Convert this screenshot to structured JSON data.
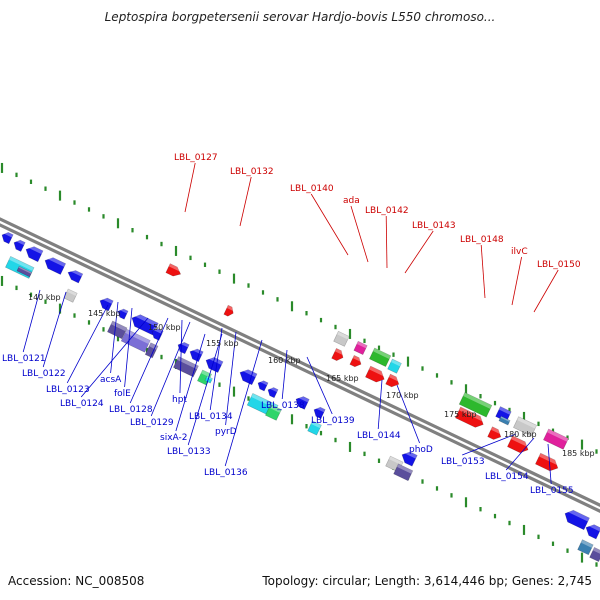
{
  "title": "Leptospira borgpetersenii serovar Hardjo-bovis L550 chromoso...",
  "footer": {
    "accession": "Accession: NC_008508",
    "summary": "Topology: circular; Length: 3,614,446 bp; Genes: 2,745"
  },
  "colors": {
    "backbone": "#808080",
    "forward_labels": "#cc0000",
    "reverse_labels": "#0000cc",
    "ticks": "#2a8a2a",
    "kbp_labels": "#222222"
  },
  "scale_ticks": [
    "140 kbp",
    "145 kbp",
    "150 kbp",
    "155 kbp",
    "160 kbp",
    "165 kbp",
    "170 kbp",
    "175 kbp",
    "180 kbp",
    "185 kbp"
  ],
  "forward_gene_labels": [
    "LBL_0127",
    "LBL_0132",
    "LBL_0140",
    "ada",
    "LBL_0142",
    "LBL_0143",
    "LBL_0148",
    "ilvC",
    "LBL_0150"
  ],
  "reverse_gene_labels": [
    "LBL_0121",
    "LBL_0122",
    "acsA",
    "LBL_0123",
    "folE",
    "LBL_0124",
    "LBL_0128",
    "hpt",
    "LBL_0129",
    "sixA-2",
    "LBL_0134",
    "pyrD",
    "LBL_0133",
    "LBL_0136",
    "LBL_0138",
    "LBL_0139",
    "LBL_0144",
    "phoD",
    "LBL_0153",
    "LBL_0154",
    "LBL_0155"
  ],
  "feature_colors": {
    "blue": "#1414e6",
    "red": "#ee1111",
    "cyan": "#22d6e8",
    "purple": "#5a4e9c",
    "violet": "#7b6fd6",
    "gray": "#c8c8c8",
    "green": "#2db82d",
    "magenta": "#e0209c",
    "teal": "#3a7fb0",
    "lime": "#2ed56a"
  }
}
